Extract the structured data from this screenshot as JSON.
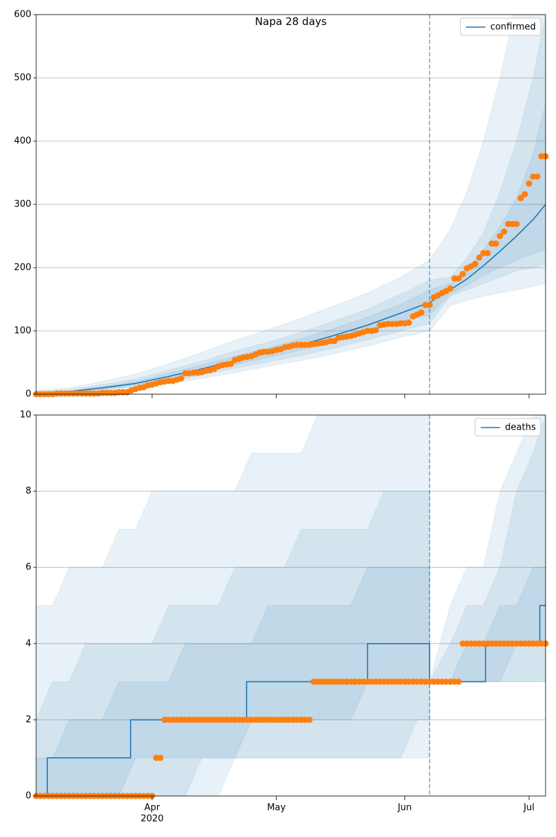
{
  "chart_data": [
    {
      "type": "line",
      "title": "Napa 28 days",
      "xlim": [
        0,
        123
      ],
      "ylim": [
        0,
        600
      ],
      "yticks": [
        0,
        100,
        200,
        300,
        400,
        500,
        600
      ],
      "grid": true,
      "legend": "upper right",
      "vline": 95,
      "band_alpha": 0.1,
      "series": [
        {
          "name": "confirmed",
          "color": "#1f77b4",
          "x": [
            0,
            8,
            16,
            24,
            32,
            40,
            48,
            56,
            64,
            72,
            80,
            88,
            95,
            100,
            104,
            108,
            112,
            116,
            120,
            123
          ],
          "values": [
            0,
            4,
            10,
            17,
            28,
            40,
            53,
            65,
            78,
            93,
            109,
            128,
            145,
            165,
            182,
            203,
            226,
            250,
            276,
            300
          ]
        }
      ],
      "bands": [
        {
          "color": "#1f77b4",
          "x": [
            0,
            8,
            16,
            24,
            32,
            40,
            48,
            56,
            64,
            72,
            80,
            88,
            95,
            100,
            104,
            108,
            112,
            116,
            120,
            123
          ],
          "upper": [
            6,
            10,
            20,
            32,
            48,
            66,
            85,
            102,
            120,
            140,
            160,
            185,
            212,
            260,
            320,
            400,
            500,
            620,
            720,
            800
          ],
          "lower": [
            0,
            1,
            4,
            9,
            16,
            25,
            34,
            44,
            53,
            64,
            76,
            90,
            100,
            140,
            148,
            155,
            160,
            165,
            170,
            175
          ]
        },
        {
          "color": "#1f77b4",
          "x": [
            0,
            8,
            16,
            24,
            32,
            40,
            48,
            56,
            64,
            72,
            80,
            88,
            95,
            100,
            104,
            108,
            112,
            116,
            120,
            123
          ],
          "upper": [
            4,
            7,
            15,
            24,
            38,
            52,
            68,
            82,
            98,
            116,
            134,
            158,
            180,
            185,
            215,
            255,
            320,
            400,
            500,
            600
          ],
          "lower": [
            0,
            2,
            6,
            12,
            20,
            30,
            41,
            51,
            61,
            73,
            86,
            100,
            112,
            155,
            165,
            175,
            185,
            195,
            200,
            205
          ]
        },
        {
          "color": "#1f77b4",
          "x": [
            0,
            8,
            16,
            24,
            32,
            40,
            48,
            56,
            64,
            72,
            80,
            88,
            95,
            100,
            104,
            108,
            112,
            116,
            120,
            123
          ],
          "upper": [
            2,
            5,
            12,
            20,
            33,
            46,
            60,
            73,
            88,
            104,
            122,
            142,
            165,
            175,
            198,
            228,
            265,
            310,
            380,
            460
          ],
          "lower": [
            0,
            3,
            8,
            14,
            24,
            35,
            47,
            58,
            70,
            83,
            98,
            115,
            125,
            158,
            172,
            188,
            200,
            212,
            222,
            230
          ]
        }
      ],
      "observed": {
        "color": "#ff7f0e",
        "x": [
          0,
          1,
          2,
          3,
          4,
          5,
          6,
          7,
          8,
          9,
          10,
          11,
          12,
          13,
          14,
          15,
          16,
          17,
          18,
          19,
          20,
          21,
          22,
          23,
          24,
          25,
          26,
          27,
          28,
          29,
          30,
          31,
          32,
          33,
          34,
          35,
          36,
          37,
          38,
          39,
          40,
          41,
          42,
          43,
          44,
          45,
          46,
          47,
          48,
          49,
          50,
          51,
          52,
          53,
          54,
          55,
          56,
          57,
          58,
          59,
          60,
          61,
          62,
          63,
          64,
          65,
          66,
          67,
          68,
          69,
          70,
          71,
          72,
          73,
          74,
          75,
          76,
          77,
          78,
          79,
          80,
          81,
          82,
          83,
          84,
          85,
          86,
          87,
          88,
          89,
          90,
          91,
          92,
          93,
          94,
          95,
          96,
          97,
          98,
          99,
          100,
          101,
          102,
          103,
          104,
          105,
          106,
          107,
          108,
          109,
          110,
          111,
          112,
          113,
          114,
          115,
          116,
          117,
          118,
          119,
          120,
          121,
          122,
          123
        ],
        "values": [
          0,
          0,
          0,
          0,
          0,
          1,
          1,
          1,
          1,
          1,
          1,
          1,
          1,
          1,
          1,
          1,
          2,
          2,
          2,
          2,
          3,
          3,
          3,
          6,
          8,
          10,
          11,
          14,
          15,
          17,
          19,
          20,
          21,
          21,
          23,
          25,
          33,
          33,
          34,
          34,
          35,
          37,
          38,
          40,
          44,
          46,
          47,
          48,
          54,
          56,
          58,
          59,
          60,
          63,
          66,
          67,
          67,
          68,
          70,
          71,
          74,
          75,
          77,
          78,
          78,
          78,
          78,
          79,
          80,
          81,
          82,
          84,
          84,
          89,
          90,
          91,
          92,
          94,
          96,
          98,
          100,
          100,
          101,
          109,
          110,
          111,
          111,
          111,
          112,
          112,
          113,
          123,
          126,
          129,
          141,
          141,
          153,
          156,
          160,
          163,
          167,
          183,
          183,
          190,
          199,
          202,
          206,
          216,
          223,
          223,
          238,
          238,
          250,
          257,
          269,
          269,
          269,
          310,
          316,
          333,
          344,
          344,
          376,
          376
        ]
      }
    },
    {
      "type": "line",
      "xlim": [
        0,
        123
      ],
      "ylim": [
        0,
        10
      ],
      "xticks": [
        {
          "value": 28,
          "label": "Apr"
        },
        {
          "value": 58,
          "label": "May"
        },
        {
          "value": 89,
          "label": "Jun"
        },
        {
          "value": 119,
          "label": "Jul"
        }
      ],
      "xtick_sublabel": "2020",
      "yticks": [
        0,
        2,
        4,
        6,
        8,
        10
      ],
      "grid": true,
      "legend": "upper right",
      "vline": 95,
      "band_alpha": 0.1,
      "series": [
        {
          "name": "deaths",
          "color": "#1f77b4",
          "x": [
            0,
            2.7,
            2.7,
            22.8,
            22.8,
            50.8,
            50.8,
            80,
            80,
            95,
            95,
            108.5,
            108.5,
            121.6,
            121.6,
            123
          ],
          "values": [
            0,
            0,
            1,
            1,
            2,
            2,
            3,
            3,
            4,
            4,
            3,
            3,
            4,
            4,
            5,
            5
          ]
        }
      ],
      "bands": [
        {
          "color": "#1f77b4",
          "x": [
            0,
            4,
            8,
            12,
            16,
            20,
            24,
            28,
            32,
            36,
            40,
            44,
            48,
            52,
            56,
            60,
            64,
            68,
            72,
            76,
            80,
            84,
            88,
            92,
            95,
            95,
            100,
            104,
            108,
            112,
            116,
            120,
            123
          ],
          "upper": [
            5,
            5,
            6,
            6,
            6,
            7,
            7,
            8,
            8,
            8,
            8,
            8,
            8,
            9,
            9,
            9,
            9,
            10,
            10,
            10,
            10,
            10,
            10,
            10,
            10,
            3,
            5,
            6,
            6,
            8,
            9,
            10,
            10
          ],
          "lower": [
            0,
            0,
            0,
            0,
            0,
            0,
            0,
            0,
            0,
            0,
            0,
            0,
            1,
            1,
            1,
            1,
            1,
            1,
            1,
            1,
            1,
            1,
            1,
            2,
            2,
            3,
            3,
            3,
            3,
            3,
            3,
            3,
            3
          ]
        },
        {
          "color": "#1f77b4",
          "x": [
            0,
            4,
            8,
            12,
            16,
            20,
            24,
            28,
            32,
            36,
            40,
            44,
            48,
            52,
            56,
            60,
            64,
            68,
            72,
            76,
            80,
            84,
            88,
            92,
            95,
            95,
            100,
            104,
            108,
            112,
            116,
            120,
            123
          ],
          "upper": [
            2,
            3,
            3,
            4,
            4,
            4,
            4,
            4,
            5,
            5,
            5,
            5,
            6,
            6,
            6,
            6,
            7,
            7,
            7,
            7,
            7,
            8,
            8,
            8,
            8,
            3,
            4,
            5,
            5,
            6,
            8,
            9,
            10
          ],
          "lower": [
            0,
            0,
            0,
            0,
            0,
            0,
            0,
            0,
            0,
            0,
            1,
            1,
            1,
            1,
            1,
            1,
            1,
            1,
            1,
            1,
            1,
            1,
            1,
            1,
            1,
            3,
            3,
            3,
            3,
            3,
            3,
            3,
            3
          ]
        },
        {
          "color": "#1f77b4",
          "x": [
            0,
            4,
            8,
            12,
            16,
            20,
            24,
            28,
            32,
            36,
            40,
            44,
            48,
            52,
            56,
            60,
            64,
            68,
            72,
            76,
            80,
            84,
            88,
            92,
            95,
            95,
            100,
            104,
            108,
            112,
            116,
            120,
            123
          ],
          "upper": [
            1,
            1,
            2,
            2,
            2,
            3,
            3,
            3,
            3,
            4,
            4,
            4,
            4,
            4,
            5,
            5,
            5,
            5,
            5,
            5,
            6,
            6,
            6,
            6,
            6,
            3,
            3,
            4,
            4,
            5,
            5,
            6,
            6
          ],
          "lower": [
            0,
            0,
            0,
            0,
            0,
            0,
            1,
            1,
            1,
            1,
            1,
            1,
            1,
            2,
            2,
            2,
            2,
            2,
            2,
            2,
            3,
            3,
            3,
            3,
            3,
            3,
            3,
            3,
            3,
            3,
            4,
            4,
            4
          ]
        }
      ],
      "observed": {
        "color": "#ff7f0e",
        "x": [
          0,
          1,
          2,
          3,
          4,
          5,
          6,
          7,
          8,
          9,
          10,
          11,
          12,
          13,
          14,
          15,
          16,
          17,
          18,
          19,
          20,
          21,
          22,
          23,
          24,
          25,
          26,
          27,
          28,
          29,
          30,
          31,
          32,
          33,
          34,
          35,
          36,
          37,
          38,
          39,
          40,
          41,
          42,
          43,
          44,
          45,
          46,
          47,
          48,
          49,
          50,
          51,
          52,
          53,
          54,
          55,
          56,
          57,
          58,
          59,
          60,
          61,
          62,
          63,
          64,
          65,
          66,
          67,
          68,
          69,
          70,
          71,
          72,
          73,
          74,
          75,
          76,
          77,
          78,
          79,
          80,
          81,
          82,
          83,
          84,
          85,
          86,
          87,
          88,
          89,
          90,
          91,
          92,
          93,
          94,
          95,
          96,
          97,
          98,
          99,
          100,
          101,
          102,
          103,
          104,
          105,
          106,
          107,
          108,
          109,
          110,
          111,
          112,
          113,
          114,
          115,
          116,
          117,
          118,
          119,
          120,
          121,
          122,
          123
        ],
        "values": [
          0,
          0,
          0,
          0,
          0,
          0,
          0,
          0,
          0,
          0,
          0,
          0,
          0,
          0,
          0,
          0,
          0,
          0,
          0,
          0,
          0,
          0,
          0,
          0,
          0,
          0,
          0,
          0,
          0,
          1,
          1,
          2,
          2,
          2,
          2,
          2,
          2,
          2,
          2,
          2,
          2,
          2,
          2,
          2,
          2,
          2,
          2,
          2,
          2,
          2,
          2,
          2,
          2,
          2,
          2,
          2,
          2,
          2,
          2,
          2,
          2,
          2,
          2,
          2,
          2,
          2,
          2,
          3,
          3,
          3,
          3,
          3,
          3,
          3,
          3,
          3,
          3,
          3,
          3,
          3,
          3,
          3,
          3,
          3,
          3,
          3,
          3,
          3,
          3,
          3,
          3,
          3,
          3,
          3,
          3,
          3,
          3,
          3,
          3,
          3,
          3,
          3,
          3,
          4,
          4,
          4,
          4,
          4,
          4,
          4,
          4,
          4,
          4,
          4,
          4,
          4,
          4,
          4,
          4,
          4,
          4,
          4,
          4,
          4
        ]
      }
    }
  ]
}
